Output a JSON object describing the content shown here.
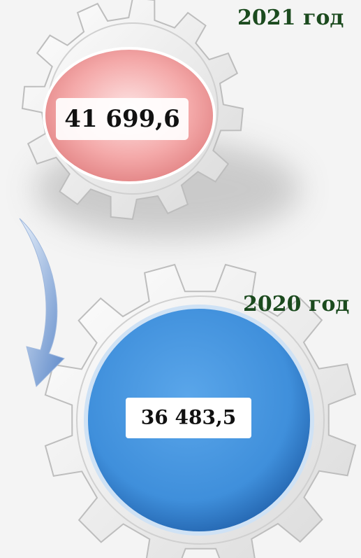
{
  "items": [
    {
      "label": "2021 год",
      "value": "41 699,6"
    },
    {
      "label": "2020 год",
      "value": "36 483,5"
    }
  ]
}
